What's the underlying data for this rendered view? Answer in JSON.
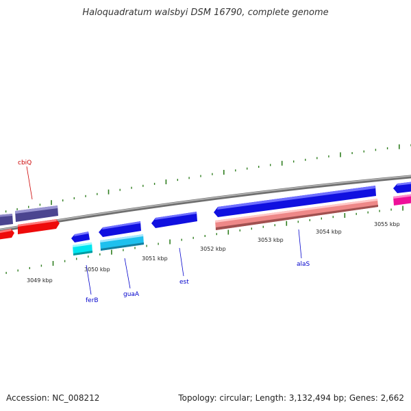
{
  "title": "Haloquadratum walsbyi DSM 16790, complete genome",
  "footer": {
    "accession": "Accession: NC_008212",
    "topology": "Topology: circular; Length: 3,132,494 bp; Genes: 2,662"
  },
  "kbp_labels": [
    "3049 kbp",
    "3050 kbp",
    "3051 kbp",
    "3052 kbp",
    "3053 kbp",
    "3054 kbp",
    "3055 kbp"
  ],
  "gene_labels": {
    "cbiQ": "cbiQ",
    "ferB": "ferB",
    "guaA": "guaA",
    "est": "est",
    "alaS": "alaS"
  },
  "colors": {
    "backbone": "#8a8a8a",
    "tick": "#2e7d1e",
    "blue": "#1010e0",
    "dark_slate": "#4b4590",
    "red": "#ee0b0b",
    "cyan": "#00e5ef",
    "sky": "#1ec0ee",
    "salmon": "#ee8888",
    "magenta": "#ee1199",
    "label_red": "#cc0000",
    "label_blue": "#0000cc"
  }
}
